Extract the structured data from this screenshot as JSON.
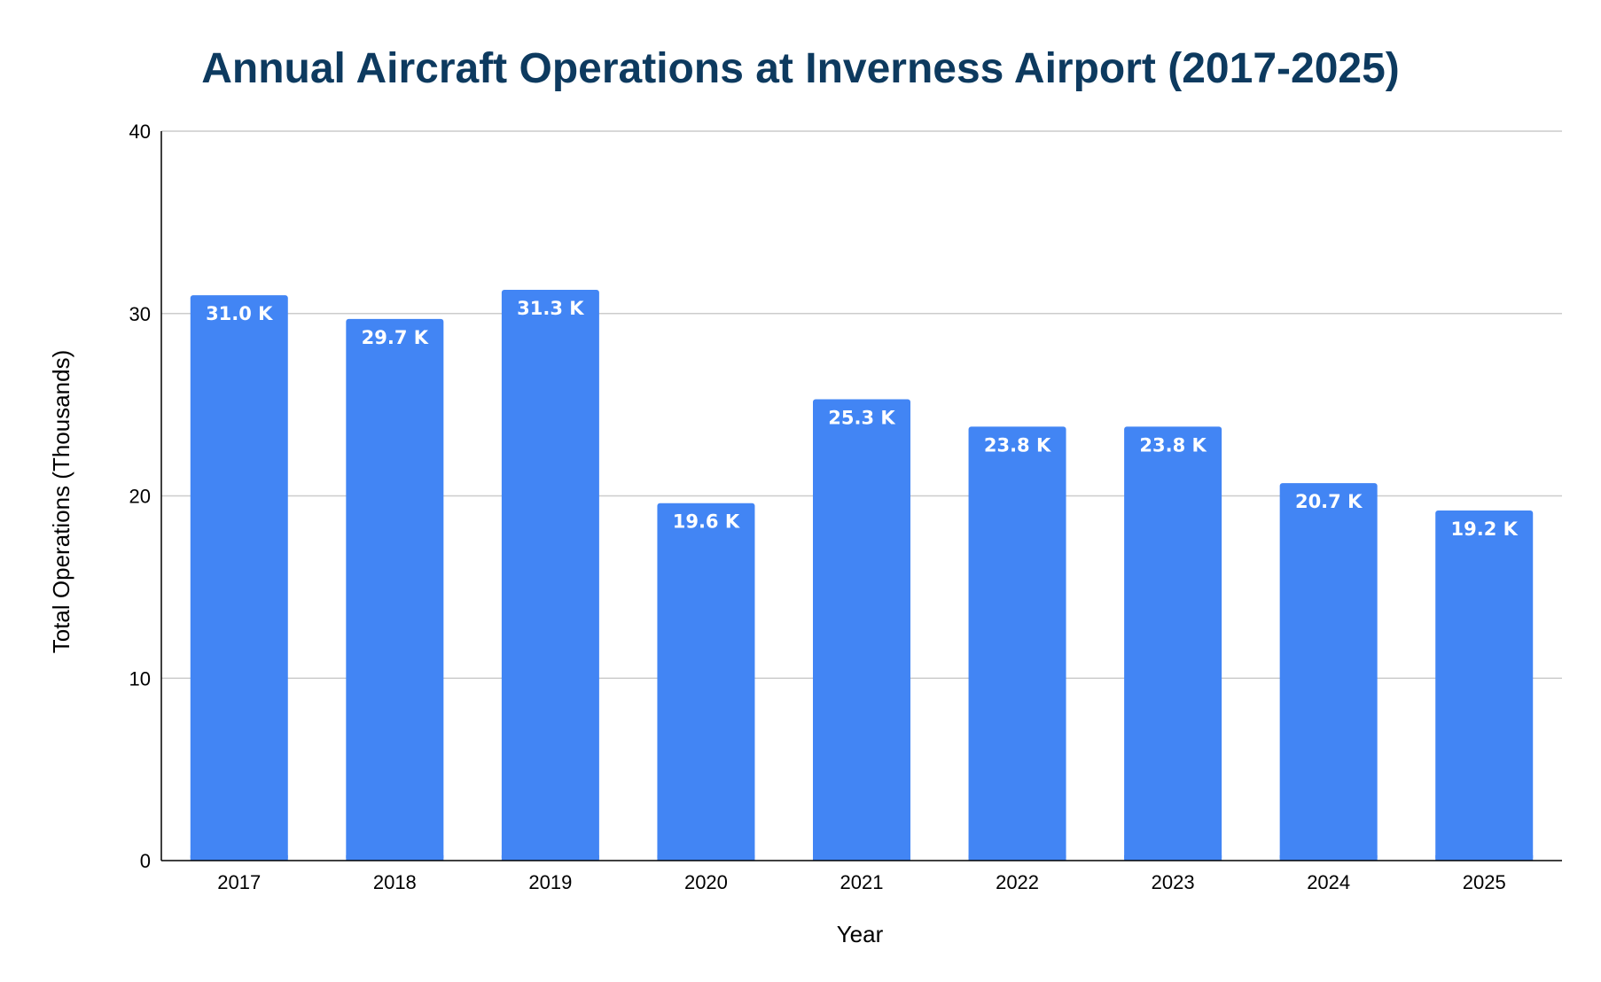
{
  "chart_data": {
    "type": "bar",
    "title": "Annual Aircraft Operations at Inverness Airport (2017-2025)",
    "xlabel": "Year",
    "ylabel": "Total Operations (Thousands)",
    "categories": [
      "2017",
      "2018",
      "2019",
      "2020",
      "2021",
      "2022",
      "2023",
      "2024",
      "2025"
    ],
    "values": [
      31.0,
      29.7,
      31.3,
      19.6,
      25.3,
      23.8,
      23.8,
      20.7,
      19.2
    ],
    "data_labels": [
      "31.0 K",
      "29.7 K",
      "31.3 K",
      "19.6 K",
      "25.3 K",
      "23.8 K",
      "23.8 K",
      "20.7 K",
      "19.2 K"
    ],
    "ylim": [
      0,
      40
    ],
    "yticks": [
      0,
      10,
      20,
      30,
      40
    ],
    "grid": true,
    "legend": "none"
  },
  "colors": {
    "bar": "#4285f4",
    "title": "#0d3a5f",
    "gridline": "#cccccc",
    "axis": "#000000",
    "data_label": "#ffffff"
  }
}
